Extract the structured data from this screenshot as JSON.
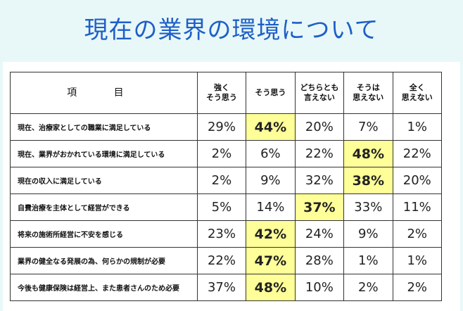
{
  "title": "現在の業界の環境について",
  "table": {
    "item_header": "項 目",
    "columns": [
      [
        "強く",
        "そう思う"
      ],
      [
        "そう思う"
      ],
      [
        "どちらとも",
        "言えない"
      ],
      [
        "そうは",
        "思えない"
      ],
      [
        "全く",
        "思えない"
      ]
    ],
    "rows": [
      {
        "label": "現在、治療家としての職業に満足している",
        "values": [
          "29%",
          "44%",
          "20%",
          "7%",
          "1%"
        ],
        "highlight": 1
      },
      {
        "label": "現在、業界がおかれている環境に満足している",
        "values": [
          "2%",
          "6%",
          "22%",
          "48%",
          "22%"
        ],
        "highlight": 3
      },
      {
        "label": "現在の収入に満足している",
        "values": [
          "2%",
          "9%",
          "32%",
          "38%",
          "20%"
        ],
        "highlight": 3
      },
      {
        "label": "自費治療を主体として経営ができる",
        "values": [
          "5%",
          "14%",
          "37%",
          "33%",
          "11%"
        ],
        "highlight": 2
      },
      {
        "label": "将来の施術所経営に不安を感じる",
        "values": [
          "23%",
          "42%",
          "24%",
          "9%",
          "2%"
        ],
        "highlight": 1
      },
      {
        "label": "業界の健全なる発展の為、何らかの規制が必要",
        "values": [
          "22%",
          "47%",
          "28%",
          "1%",
          "1%"
        ],
        "highlight": 1
      },
      {
        "label": "今後も健康保険は経営上、また患者さんのため必要",
        "values": [
          "37%",
          "48%",
          "10%",
          "2%",
          "2%"
        ],
        "highlight": 1
      }
    ],
    "highlight_color": "#ffff99"
  }
}
